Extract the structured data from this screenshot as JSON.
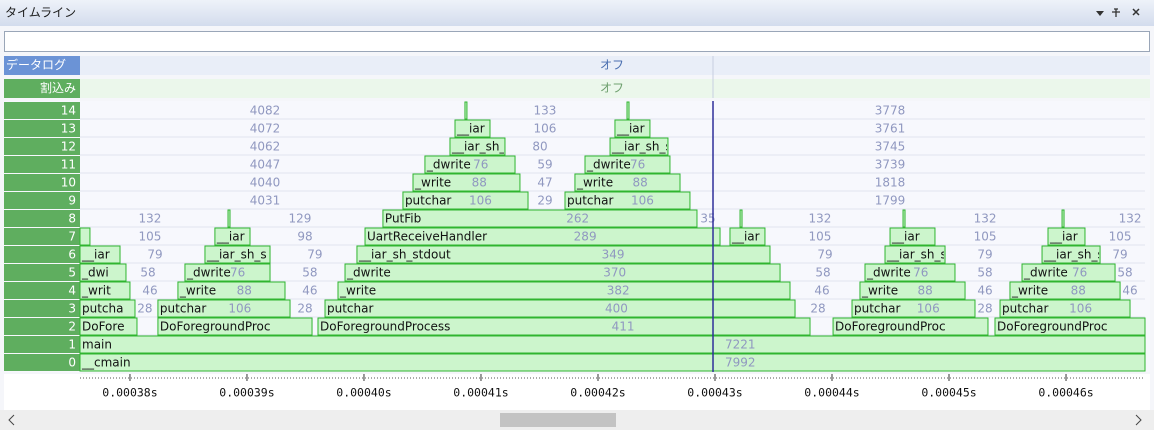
{
  "window": {
    "title": "タイムライン"
  },
  "rows": [
    {
      "label": "データログ",
      "status": "オフ"
    },
    {
      "label": "割込み",
      "status": "オフ"
    }
  ],
  "timeline": {
    "levels": [
      14,
      13,
      12,
      11,
      10,
      9,
      8,
      7,
      6,
      5,
      4,
      3,
      2,
      1,
      0
    ],
    "xlim": [
      0.00037573,
      0.00046675
    ],
    "xticks": [
      {
        "value": 0.00038,
        "label": "0.00038s"
      },
      {
        "value": 0.00039,
        "label": "0.00039s"
      },
      {
        "value": 0.0004,
        "label": "0.00040s"
      },
      {
        "value": 0.00041,
        "label": "0.00041s"
      },
      {
        "value": 0.00042,
        "label": "0.00042s"
      },
      {
        "value": 0.00043,
        "label": "0.00043s"
      },
      {
        "value": 0.00044,
        "label": "0.00044s"
      },
      {
        "value": 0.00045,
        "label": "0.00045s"
      },
      {
        "value": 0.00046,
        "label": "0.00046s"
      }
    ],
    "cursor": 0.00042983,
    "blocks": [
      {
        "level": 0,
        "name": "__cmain",
        "start": 0.00037573,
        "end": 0.00046675,
        "value": 7992
      },
      {
        "level": 1,
        "name": "main",
        "start": 0.00037573,
        "end": 0.00046675,
        "value": 7221
      },
      {
        "level": 2,
        "name": "DoFore",
        "start": 0.00037573,
        "end": 0.0003806
      },
      {
        "level": 2,
        "name": "DoForegroundProc",
        "start": 0.00038239,
        "end": 0.00039556
      },
      {
        "level": 2,
        "name": "DoForegroundProcess",
        "start": 0.00039607,
        "end": 0.00043812,
        "value": 411
      },
      {
        "level": 2,
        "name": "DoForegroundProc",
        "start": 0.00044009,
        "end": 0.00045333
      },
      {
        "level": 2,
        "name": "DoForegroundProc",
        "start": 0.00045393,
        "end": 0.00046675
      },
      {
        "level": 3,
        "name": "putcha",
        "start": 0.00037573,
        "end": 0.00038043
      },
      {
        "level": 3,
        "name": "putchar",
        "start": 0.00038239,
        "end": 0.00039368,
        "value": 106
      },
      {
        "level": 3,
        "name": "putchar",
        "start": 0.00039667,
        "end": 0.00043684,
        "value": 400
      },
      {
        "level": 3,
        "name": "putchar",
        "start": 0.00044171,
        "end": 0.00045222,
        "value": 106
      },
      {
        "level": 3,
        "name": "putchar",
        "start": 0.00045436,
        "end": 0.00046547,
        "value": 106
      },
      {
        "level": 4,
        "name": "_writ",
        "start": 0.00037573,
        "end": 0.00038
      },
      {
        "level": 4,
        "name": "_write",
        "start": 0.0003841,
        "end": 0.00039325,
        "value": 88
      },
      {
        "level": 4,
        "name": "_write",
        "start": 0.00039778,
        "end": 0.00043641,
        "value": 382
      },
      {
        "level": 4,
        "name": "_write",
        "start": 0.00044239,
        "end": 0.00045137,
        "value": 88
      },
      {
        "level": 4,
        "name": "_write",
        "start": 0.00045521,
        "end": 0.00046462,
        "value": 88
      },
      {
        "level": 5,
        "name": "_dwi",
        "start": 0.00037573,
        "end": 0.00037966
      },
      {
        "level": 5,
        "name": "_dwrite",
        "start": 0.0003847,
        "end": 0.00039197,
        "value": 76
      },
      {
        "level": 5,
        "name": "_dwrite",
        "start": 0.00039838,
        "end": 0.00043556,
        "value": 370
      },
      {
        "level": 5,
        "name": "_dwrite",
        "start": 0.00044282,
        "end": 0.00045051,
        "value": 76
      },
      {
        "level": 5,
        "name": "_dwrite",
        "start": 0.00045624,
        "end": 0.00046419,
        "value": 76
      },
      {
        "level": 6,
        "name": "__iar",
        "start": 0.00037573,
        "end": 0.00037915
      },
      {
        "level": 6,
        "name": "__iar_sh_s",
        "start": 0.00038641,
        "end": 0.00039197
      },
      {
        "level": 6,
        "name": "__iar_sh_stdout",
        "start": 0.0003994,
        "end": 0.0004347,
        "value": 349
      },
      {
        "level": 6,
        "name": "__iar_sh_s",
        "start": 0.00044453,
        "end": 0.00044966
      },
      {
        "level": 6,
        "name": "__iar_sh_s",
        "start": 0.00045795,
        "end": 0.00046291
      },
      {
        "level": 7,
        "start": 0.00037573,
        "end": 0.00037658
      },
      {
        "level": 7,
        "name": "__iar",
        "start": 0.00038726,
        "end": 0.00039026
      },
      {
        "level": 7,
        "name": "UartReceiveHandler",
        "start": 0.00040009,
        "end": 0.00043043,
        "value": 289
      },
      {
        "level": 7,
        "name": "__iar",
        "start": 0.00043128,
        "end": 0.00043427
      },
      {
        "level": 7,
        "name": "__iar",
        "start": 0.00044496,
        "end": 0.0004488
      },
      {
        "level": 7,
        "name": "__iar",
        "start": 0.00045846,
        "end": 0.00046162
      },
      {
        "level": 8,
        "start": 0.00038838,
        "end": 0.00038855
      },
      {
        "level": 8,
        "name": "PutFib",
        "start": 0.00040162,
        "end": 0.00042846,
        "value": 262
      },
      {
        "level": 8,
        "start": 0.00043214,
        "end": 0.00043231
      },
      {
        "level": 8,
        "start": 0.00044607,
        "end": 0.00044624
      },
      {
        "level": 8,
        "start": 0.00045966,
        "end": 0.00045983
      },
      {
        "level": 9,
        "name": "putchar",
        "start": 0.00040333,
        "end": 0.00041402,
        "value": 106
      },
      {
        "level": 9,
        "name": "putchar",
        "start": 0.00041718,
        "end": 0.00042786,
        "value": 106
      },
      {
        "level": 10,
        "name": "_write",
        "start": 0.00040419,
        "end": 0.00041333,
        "value": 88
      },
      {
        "level": 10,
        "name": "_write",
        "start": 0.00041803,
        "end": 0.00042701,
        "value": 88
      },
      {
        "level": 11,
        "name": "_dwrite",
        "start": 0.00040521,
        "end": 0.00041291,
        "value": 76
      },
      {
        "level": 11,
        "name": "_dwrite",
        "start": 0.00041889,
        "end": 0.00042615,
        "value": 76
      },
      {
        "level": 12,
        "name": "__iar_sh_s",
        "start": 0.00040735,
        "end": 0.00041205
      },
      {
        "level": 12,
        "name": "__iar_sh_s",
        "start": 0.00042103,
        "end": 0.00042598
      },
      {
        "level": 13,
        "name": "__iar",
        "start": 0.00040778,
        "end": 0.00041077
      },
      {
        "level": 13,
        "name": "__iar",
        "start": 0.00042145,
        "end": 0.00042444
      },
      {
        "level": 14,
        "start": 0.00040863,
        "end": 0.0004088
      },
      {
        "level": 14,
        "start": 0.00042248,
        "end": 0.00042265
      }
    ],
    "gaps": [
      {
        "level": 3,
        "at": 0.00038128,
        "value": 28
      },
      {
        "level": 3,
        "at": 0.00039496,
        "value": 28
      },
      {
        "level": 3,
        "at": 0.0004388,
        "value": 28
      },
      {
        "level": 3,
        "at": 0.00045308,
        "value": 28
      },
      {
        "level": 4,
        "at": 0.00038171,
        "value": 46
      },
      {
        "level": 4,
        "at": 0.00039538,
        "value": 46
      },
      {
        "level": 4,
        "at": 0.00043915,
        "value": 46
      },
      {
        "level": 4,
        "at": 0.00045308,
        "value": 46
      },
      {
        "level": 4,
        "at": 0.00046547,
        "value": 46
      },
      {
        "level": 5,
        "at": 0.00038154,
        "value": 58
      },
      {
        "level": 5,
        "at": 0.00039538,
        "value": 58
      },
      {
        "level": 5,
        "at": 0.00043923,
        "value": 58
      },
      {
        "level": 5,
        "at": 0.00045308,
        "value": 58
      },
      {
        "level": 5,
        "at": 0.00046504,
        "value": 58
      },
      {
        "level": 6,
        "at": 0.00038214,
        "value": 79
      },
      {
        "level": 6,
        "at": 0.00039581,
        "value": 79
      },
      {
        "level": 6,
        "at": 0.0004394,
        "value": 79
      },
      {
        "level": 6,
        "at": 0.00045308,
        "value": 79
      },
      {
        "level": 6,
        "at": 0.00046462,
        "value": 79
      },
      {
        "level": 7,
        "at": 0.00038171,
        "value": 105
      },
      {
        "level": 7,
        "at": 0.00039496,
        "value": 98
      },
      {
        "level": 7,
        "at": 0.00043897,
        "value": 105
      },
      {
        "level": 7,
        "at": 0.00045308,
        "value": 105
      },
      {
        "level": 7,
        "at": 0.00046462,
        "value": 105
      },
      {
        "level": 8,
        "at": 0.00038171,
        "value": 132
      },
      {
        "level": 8,
        "at": 0.00039453,
        "value": 129
      },
      {
        "level": 8,
        "at": 0.0004294,
        "value": 35
      },
      {
        "level": 8,
        "at": 0.00043897,
        "value": 132
      },
      {
        "level": 8,
        "at": 0.00045308,
        "value": 132
      },
      {
        "level": 8,
        "at": 0.00046547,
        "value": 132
      },
      {
        "level": 9,
        "at": 0.00039154,
        "value": 4031
      },
      {
        "level": 9,
        "at": 0.00041547,
        "value": 29
      },
      {
        "level": 9,
        "at": 0.00044496,
        "value": 1799
      },
      {
        "level": 10,
        "at": 0.00039154,
        "value": 4040
      },
      {
        "level": 10,
        "at": 0.00041547,
        "value": 47
      },
      {
        "level": 10,
        "at": 0.00044496,
        "value": 1818
      },
      {
        "level": 11,
        "at": 0.00039154,
        "value": 4047
      },
      {
        "level": 11,
        "at": 0.00041547,
        "value": 59
      },
      {
        "level": 11,
        "at": 0.00044496,
        "value": 3739
      },
      {
        "level": 12,
        "at": 0.00039154,
        "value": 4062
      },
      {
        "level": 12,
        "at": 0.00041504,
        "value": 80
      },
      {
        "level": 12,
        "at": 0.00044496,
        "value": 3745
      },
      {
        "level": 13,
        "at": 0.00039154,
        "value": 4072
      },
      {
        "level": 13,
        "at": 0.00041547,
        "value": 106
      },
      {
        "level": 13,
        "at": 0.00044496,
        "value": 3761
      },
      {
        "level": 14,
        "at": 0.00039154,
        "value": 4082
      },
      {
        "level": 14,
        "at": 0.00041547,
        "value": 133
      },
      {
        "level": 14,
        "at": 0.00044496,
        "value": 3778
      }
    ]
  }
}
